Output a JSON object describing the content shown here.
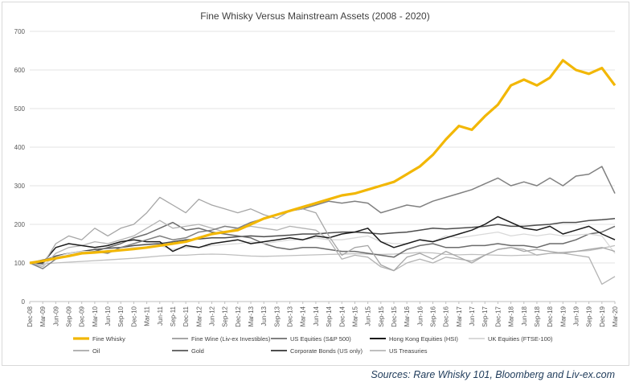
{
  "source_note": "Sources:  Rare Whisky 101, Bloomberg and Liv-ex.com",
  "chart_data": {
    "type": "line",
    "title": "Fine Whisky Versus Mainstream Assets (2008 - 2020)",
    "xlabel": "",
    "ylabel": "",
    "ylim": [
      0,
      700
    ],
    "yticks": [
      0,
      100,
      200,
      300,
      400,
      500,
      600,
      700
    ],
    "grid": "horizontal",
    "legend_position": "bottom",
    "x_tick_labels": [
      "Dec-08",
      "Mar-09",
      "Jun-09",
      "Sep-09",
      "Dec-09",
      "Mar-10",
      "Jun-10",
      "Sep-10",
      "Dec-10",
      "Mar-11",
      "Jun-11",
      "Sep-11",
      "Dec-11",
      "Mar-12",
      "Jun-12",
      "Sep-12",
      "Dec-12",
      "Mar-13",
      "Jun-13",
      "Sep-13",
      "Dec-13",
      "Mar-14",
      "Jun-14",
      "Sep-14",
      "Dec-14",
      "Mar-15",
      "Jun-15",
      "Sep-15",
      "Dec-15",
      "Mar-16",
      "Jun-16",
      "Sep-16",
      "Dec-16",
      "Mar-17",
      "Jun-17",
      "Sep-17",
      "Dec-17",
      "Mar-18",
      "Jun-18",
      "Sep-18",
      "Dec-18",
      "Mar-19",
      "Jun-19",
      "Sep-19",
      "Dec-19",
      "Mar-20"
    ],
    "series": [
      {
        "name": "Fine Whisky",
        "color": "#f2b705",
        "width": 3.2,
        "values": [
          100,
          105,
          112,
          118,
          125,
          127,
          130,
          133,
          136,
          140,
          145,
          150,
          155,
          165,
          175,
          180,
          185,
          200,
          215,
          225,
          235,
          245,
          255,
          265,
          275,
          280,
          290,
          300,
          310,
          330,
          350,
          380,
          420,
          455,
          445,
          480,
          510,
          560,
          575,
          560,
          580,
          625,
          600,
          590,
          605,
          560
        ]
      },
      {
        "name": "Fine Wine (Liv-ex Investibles)",
        "color": "#a6a6a6",
        "width": 1.3,
        "values": [
          100,
          95,
          150,
          170,
          160,
          190,
          170,
          190,
          200,
          230,
          270,
          250,
          230,
          265,
          250,
          240,
          230,
          240,
          225,
          215,
          235,
          240,
          230,
          170,
          120,
          140,
          145,
          95,
          80,
          115,
          125,
          110,
          130,
          115,
          100,
          120,
          135,
          140,
          130,
          135,
          130,
          125,
          130,
          135,
          140,
          130
        ]
      },
      {
        "name": "US Equities (S&P 500)",
        "color": "#808080",
        "width": 1.5,
        "values": [
          100,
          85,
          110,
          120,
          125,
          130,
          125,
          140,
          150,
          160,
          170,
          160,
          165,
          180,
          185,
          195,
          190,
          205,
          215,
          225,
          235,
          240,
          250,
          260,
          255,
          260,
          255,
          230,
          240,
          250,
          245,
          260,
          270,
          280,
          290,
          305,
          320,
          300,
          310,
          300,
          320,
          300,
          325,
          330,
          350,
          280
        ]
      },
      {
        "name": "Hong Kong Equities (HSI)",
        "color": "#1a1a1a",
        "width": 1.5,
        "values": [
          100,
          100,
          140,
          150,
          145,
          140,
          145,
          155,
          160,
          155,
          155,
          130,
          145,
          140,
          150,
          155,
          160,
          150,
          155,
          160,
          165,
          160,
          170,
          165,
          175,
          180,
          190,
          155,
          140,
          150,
          160,
          155,
          165,
          175,
          185,
          200,
          220,
          205,
          190,
          185,
          195,
          175,
          185,
          195,
          175,
          160
        ]
      },
      {
        "name": "UK Equities (FTSE-100)",
        "color": "#d9d9d9",
        "width": 1.3,
        "values": [
          100,
          95,
          115,
          125,
          130,
          130,
          128,
          135,
          140,
          140,
          145,
          135,
          140,
          140,
          145,
          148,
          150,
          155,
          150,
          155,
          160,
          160,
          165,
          160,
          160,
          165,
          170,
          155,
          150,
          150,
          160,
          155,
          170,
          165,
          170,
          175,
          180,
          170,
          175,
          170,
          175,
          170,
          172,
          175,
          170,
          125
        ]
      },
      {
        "name": "Oil",
        "color": "#b3b3b3",
        "width": 1.3,
        "values": [
          100,
          90,
          125,
          140,
          145,
          155,
          150,
          160,
          170,
          190,
          210,
          190,
          195,
          200,
          190,
          180,
          190,
          195,
          190,
          185,
          195,
          190,
          185,
          160,
          110,
          120,
          115,
          90,
          80,
          100,
          110,
          100,
          115,
          110,
          105,
          120,
          135,
          140,
          135,
          120,
          125,
          125,
          120,
          115,
          45,
          65
        ]
      },
      {
        "name": "Gold",
        "color": "#6b6b6b",
        "width": 1.5,
        "values": [
          100,
          108,
          115,
          118,
          125,
          130,
          140,
          150,
          165,
          175,
          190,
          205,
          185,
          190,
          180,
          175,
          170,
          165,
          150,
          140,
          135,
          140,
          140,
          135,
          130,
          130,
          125,
          120,
          115,
          135,
          145,
          150,
          140,
          140,
          145,
          145,
          150,
          145,
          145,
          140,
          150,
          150,
          160,
          175,
          180,
          195
        ]
      },
      {
        "name": "Corporate Bonds (US only)",
        "color": "#4d4d4d",
        "width": 1.5,
        "values": [
          100,
          105,
          118,
          125,
          130,
          135,
          138,
          140,
          145,
          148,
          150,
          155,
          160,
          162,
          165,
          165,
          168,
          170,
          168,
          170,
          172,
          175,
          175,
          178,
          180,
          180,
          178,
          175,
          178,
          180,
          185,
          190,
          188,
          190,
          192,
          195,
          200,
          195,
          195,
          198,
          200,
          205,
          205,
          210,
          212,
          215
        ]
      },
      {
        "name": "US Treasuries",
        "color": "#bfbfbf",
        "width": 1.3,
        "values": [
          100,
          98,
          100,
          102,
          104,
          106,
          108,
          110,
          112,
          115,
          118,
          120,
          120,
          122,
          123,
          122,
          120,
          118,
          117,
          118,
          119,
          120,
          121,
          122,
          123,
          124,
          123,
          122,
          123,
          125,
          127,
          126,
          122,
          121,
          122,
          121,
          120,
          119,
          120,
          121,
          125,
          128,
          130,
          132,
          138,
          145
        ]
      }
    ]
  }
}
